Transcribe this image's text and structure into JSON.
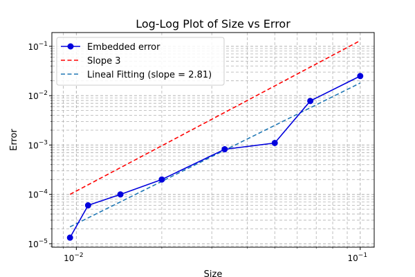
{
  "chart_data": {
    "type": "line",
    "title": "Log-Log Plot of Size vs Error",
    "xlabel": "Size",
    "ylabel": "Error",
    "xscale": "log",
    "yscale": "log",
    "xlim": [
      0.0082,
      0.112
    ],
    "ylim": [
      8.5e-06,
      0.19
    ],
    "grid": "on (major and minor, dashed)",
    "legend_position": "top-left",
    "x_ticks": [
      {
        "value": 0.01,
        "base": "10",
        "exp": "−2"
      },
      {
        "value": 0.1,
        "base": "10",
        "exp": "−1"
      }
    ],
    "y_ticks": [
      {
        "value": 1e-05,
        "base": "10",
        "exp": "−5"
      },
      {
        "value": 0.0001,
        "base": "10",
        "exp": "−4"
      },
      {
        "value": 0.001,
        "base": "10",
        "exp": "−3"
      },
      {
        "value": 0.01,
        "base": "10",
        "exp": "−2"
      },
      {
        "value": 0.1,
        "base": "10",
        "exp": "−1"
      }
    ],
    "series": [
      {
        "name": "Embedded error",
        "color": "#0000dd",
        "style": "solid",
        "marker": "circle",
        "x": [
          0.0095,
          0.011,
          0.0143,
          0.02,
          0.0333,
          0.05,
          0.0667,
          0.1
        ],
        "y": [
          1.33e-05,
          6e-05,
          0.0001,
          0.0002,
          0.00082,
          0.0011,
          0.0078,
          0.025
        ]
      },
      {
        "name": "Slope 3",
        "color": "#ff0000",
        "style": "dashed",
        "marker": "none",
        "x": [
          0.0095,
          0.1
        ],
        "y": [
          0.0001,
          0.13
        ]
      },
      {
        "name": "Lineal Fitting (slope = 2.81)",
        "color": "#1f77b4",
        "style": "dashed",
        "marker": "none",
        "x": [
          0.0095,
          0.1
        ],
        "y": [
          2.2e-05,
          0.018
        ]
      }
    ]
  }
}
